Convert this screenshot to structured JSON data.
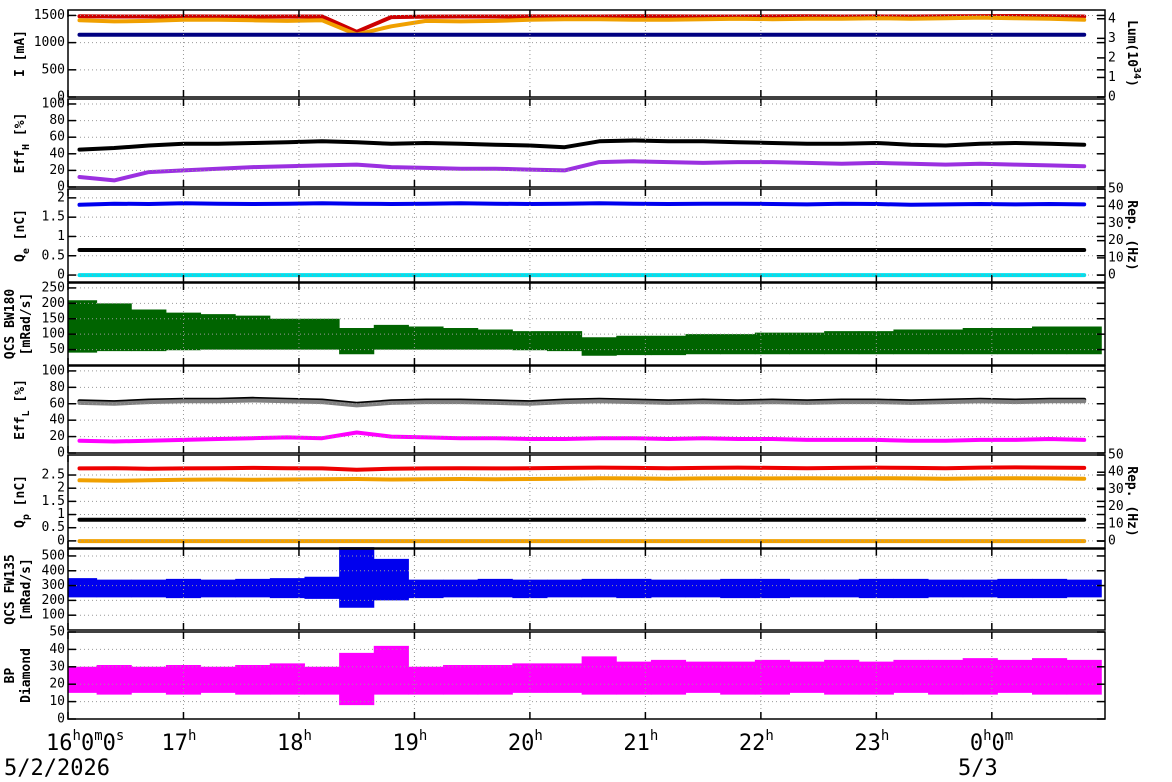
{
  "date_labels": [
    "5/2/2026",
    "5/3"
  ],
  "time_axis": {
    "xlim": [
      16,
      24.98
    ],
    "xticks": [
      {
        "value": 16,
        "label": "16h0m0s"
      },
      {
        "value": 17,
        "label": "17h"
      },
      {
        "value": 18,
        "label": "18h"
      },
      {
        "value": 19,
        "label": "19h"
      },
      {
        "value": 20,
        "label": "20h"
      },
      {
        "value": 21,
        "label": "21h"
      },
      {
        "value": 22,
        "label": "22h"
      },
      {
        "value": 23,
        "label": "23h"
      },
      {
        "value": 24,
        "label": "0h0m"
      }
    ],
    "x": [
      16.1,
      16.4,
      16.7,
      17.0,
      17.3,
      17.6,
      17.9,
      18.2,
      18.5,
      18.8,
      19.1,
      19.4,
      19.7,
      20.0,
      20.3,
      20.6,
      20.9,
      21.2,
      21.5,
      21.8,
      22.1,
      22.4,
      22.7,
      23.0,
      23.3,
      23.6,
      23.9,
      24.2,
      24.5,
      24.8
    ]
  },
  "chart_data": [
    {
      "type": "line",
      "ylabel": [
        [
          {
            "text": "I [mA]"
          }
        ]
      ],
      "y2label": [
        [
          {
            "text": "Lum(10"
          },
          {
            "text": "34",
            "shift": "super"
          },
          {
            "text": ")"
          }
        ]
      ],
      "ylim": [
        0,
        1600
      ],
      "yticks": [
        0,
        500,
        1000,
        1500
      ],
      "y2lim": [
        0,
        4.45
      ],
      "y2ticks": [
        0,
        1,
        2,
        3,
        4
      ],
      "grid": true,
      "series": [
        {
          "color": "#cc0000",
          "values": [
            1485,
            1480,
            1480,
            1482,
            1480,
            1478,
            1480,
            1480,
            1200,
            1470,
            1478,
            1480,
            1480,
            1482,
            1480,
            1480,
            1485,
            1482,
            1480,
            1480,
            1482,
            1485,
            1480,
            1482,
            1480,
            1485,
            1488,
            1490,
            1485,
            1480
          ]
        },
        {
          "color": "#f0a000",
          "values": [
            1410,
            1390,
            1400,
            1420,
            1420,
            1410,
            1400,
            1410,
            1150,
            1300,
            1400,
            1390,
            1400,
            1420,
            1430,
            1430,
            1420,
            1420,
            1430,
            1440,
            1430,
            1440,
            1440,
            1450,
            1440,
            1450,
            1460,
            1450,
            1440,
            1420
          ]
        },
        {
          "color": "#000080",
          "axis": "y2",
          "values": [
            3.18,
            3.18,
            3.18,
            3.18,
            3.18,
            3.18,
            3.18,
            3.18,
            3.18,
            3.18,
            3.18,
            3.18,
            3.18,
            3.18,
            3.18,
            3.18,
            3.18,
            3.18,
            3.18,
            3.18,
            3.18,
            3.18,
            3.18,
            3.18,
            3.18,
            3.18,
            3.18,
            3.18,
            3.18,
            3.18
          ]
        }
      ]
    },
    {
      "type": "line",
      "ylabel": [
        [
          {
            "text": "Eff"
          },
          {
            "text": "H",
            "shift": "sub"
          },
          {
            "text": " [%]"
          }
        ]
      ],
      "ylim": [
        0,
        106
      ],
      "yticks": [
        0,
        20,
        40,
        60,
        80,
        100
      ],
      "grid": true,
      "series": [
        {
          "color": "#000000",
          "values": [
            45,
            47,
            50,
            52,
            52,
            53,
            54,
            55,
            54,
            52,
            53,
            52,
            51,
            50,
            48,
            55,
            56,
            55,
            55,
            54,
            53,
            52,
            52,
            53,
            51,
            50,
            52,
            53,
            52,
            51
          ]
        },
        {
          "color": "#9b30e0",
          "values": [
            12,
            8,
            18,
            20,
            22,
            24,
            25,
            26,
            27,
            24,
            23,
            22,
            22,
            21,
            20,
            30,
            31,
            30,
            29,
            30,
            30,
            29,
            28,
            29,
            28,
            27,
            28,
            27,
            26,
            25
          ]
        }
      ]
    },
    {
      "type": "line",
      "ylabel": [
        [
          {
            "text": "Q"
          },
          {
            "text": "e",
            "shift": "sub"
          },
          {
            "text": " [nC]"
          }
        ]
      ],
      "y2label": [
        [
          {
            "text": "Rep. (Hz)"
          }
        ]
      ],
      "ylim": [
        -0.18,
        2.23
      ],
      "yticks": [
        0,
        0.5,
        1,
        1.5,
        2
      ],
      "y2lim": [
        -4,
        50
      ],
      "y2ticks": [
        0,
        10,
        20,
        30,
        40,
        50
      ],
      "grid": true,
      "series": [
        {
          "color": "#0000ee",
          "values": [
            1.82,
            1.85,
            1.84,
            1.86,
            1.85,
            1.84,
            1.85,
            1.86,
            1.85,
            1.84,
            1.85,
            1.86,
            1.85,
            1.84,
            1.85,
            1.86,
            1.85,
            1.84,
            1.85,
            1.85,
            1.84,
            1.83,
            1.85,
            1.84,
            1.82,
            1.83,
            1.84,
            1.83,
            1.84,
            1.83
          ]
        },
        {
          "color": "#000000",
          "values": [
            0.65,
            0.65,
            0.65,
            0.65,
            0.65,
            0.65,
            0.65,
            0.65,
            0.65,
            0.65,
            0.65,
            0.65,
            0.65,
            0.65,
            0.65,
            0.65,
            0.65,
            0.65,
            0.65,
            0.65,
            0.65,
            0.65,
            0.65,
            0.65,
            0.65,
            0.65,
            0.65,
            0.65,
            0.65,
            0.65
          ]
        },
        {
          "color": "#00e0ee",
          "axis": "y2",
          "values": [
            0,
            0,
            0,
            0,
            0,
            0,
            0,
            0,
            0,
            0,
            0,
            0,
            0,
            0,
            0,
            0,
            0,
            0,
            0,
            0,
            0,
            0,
            0,
            0,
            0,
            0,
            0,
            0,
            0,
            0
          ]
        }
      ]
    },
    {
      "type": "range",
      "ylabel": [
        [
          {
            "text": "QCS BW180"
          }
        ],
        [
          {
            "text": "[mRad/s]"
          }
        ]
      ],
      "ylim": [
        0,
        266
      ],
      "yticks": [
        50,
        100,
        150,
        200,
        250
      ],
      "grid": true,
      "series": [
        {
          "color": "#006400",
          "values": [
            210,
            200,
            180,
            170,
            165,
            160,
            150,
            150,
            120,
            130,
            125,
            120,
            115,
            110,
            110,
            90,
            95,
            95,
            100,
            100,
            105,
            105,
            110,
            110,
            115,
            115,
            120,
            120,
            125,
            125
          ],
          "lower": [
            40,
            45,
            45,
            48,
            50,
            50,
            50,
            50,
            35,
            50,
            50,
            50,
            50,
            48,
            45,
            30,
            32,
            32,
            35,
            35,
            35,
            35,
            35,
            35,
            35,
            35,
            35,
            35,
            35,
            35
          ]
        }
      ]
    },
    {
      "type": "line",
      "ylabel": [
        [
          {
            "text": "Eff"
          },
          {
            "text": "L",
            "shift": "sub"
          },
          {
            "text": " [%]"
          }
        ]
      ],
      "ylim": [
        0,
        106
      ],
      "yticks": [
        0,
        20,
        40,
        60,
        80,
        100
      ],
      "grid": true,
      "series": [
        {
          "color": "#000000",
          "values": [
            63,
            62,
            64,
            65,
            65,
            66,
            65,
            64,
            60,
            63,
            64,
            64,
            63,
            62,
            64,
            65,
            64,
            63,
            64,
            63,
            64,
            63,
            64,
            64,
            63,
            64,
            65,
            64,
            65,
            65
          ]
        },
        {
          "color": "#808080",
          "values": [
            61,
            60,
            62,
            63,
            63,
            64,
            63,
            62,
            58,
            61,
            62,
            62,
            61,
            60,
            62,
            63,
            62,
            61,
            62,
            61,
            62,
            61,
            62,
            62,
            61,
            62,
            63,
            62,
            63,
            63
          ]
        },
        {
          "color": "#ff00ff",
          "values": [
            15,
            14,
            15,
            16,
            17,
            18,
            19,
            18,
            25,
            20,
            19,
            18,
            18,
            17,
            17,
            18,
            18,
            17,
            18,
            17,
            17,
            16,
            16,
            16,
            15,
            15,
            16,
            16,
            17,
            16
          ]
        }
      ]
    },
    {
      "type": "line",
      "ylabel": [
        [
          {
            "text": "Q"
          },
          {
            "text": "p",
            "shift": "sub"
          },
          {
            "text": " [nC]"
          }
        ]
      ],
      "y2label": [
        [
          {
            "text": "Rep. (Hz)"
          }
        ]
      ],
      "ylim": [
        -0.27,
        3.26
      ],
      "yticks": [
        0,
        0.5,
        1,
        1.5,
        2,
        2.5
      ],
      "y2lim": [
        -4,
        50
      ],
      "y2ticks": [
        0,
        10,
        20,
        30,
        40,
        50
      ],
      "grid": true,
      "series": [
        {
          "color": "#ee0000",
          "values": [
            2.75,
            2.76,
            2.74,
            2.75,
            2.76,
            2.77,
            2.76,
            2.75,
            2.7,
            2.74,
            2.75,
            2.76,
            2.75,
            2.76,
            2.77,
            2.78,
            2.77,
            2.76,
            2.77,
            2.78,
            2.77,
            2.76,
            2.77,
            2.78,
            2.77,
            2.76,
            2.78,
            2.79,
            2.78,
            2.77
          ]
        },
        {
          "color": "#f0a000",
          "values": [
            2.3,
            2.28,
            2.3,
            2.32,
            2.33,
            2.32,
            2.33,
            2.34,
            2.35,
            2.33,
            2.34,
            2.35,
            2.34,
            2.35,
            2.36,
            2.38,
            2.37,
            2.36,
            2.37,
            2.38,
            2.37,
            2.38,
            2.37,
            2.38,
            2.37,
            2.36,
            2.37,
            2.38,
            2.37,
            2.36
          ]
        },
        {
          "color": "#000000",
          "values": [
            0.8,
            0.8,
            0.8,
            0.8,
            0.8,
            0.8,
            0.8,
            0.8,
            0.8,
            0.8,
            0.8,
            0.8,
            0.8,
            0.8,
            0.8,
            0.8,
            0.8,
            0.8,
            0.8,
            0.8,
            0.8,
            0.8,
            0.8,
            0.8,
            0.8,
            0.8,
            0.8,
            0.8,
            0.8,
            0.8
          ]
        },
        {
          "color": "#f0a000",
          "axis": "y2",
          "values": [
            0,
            0,
            0,
            0,
            0,
            0,
            0,
            0,
            0,
            0,
            0,
            0,
            0,
            0,
            0,
            0,
            0,
            0,
            0,
            0,
            0,
            0,
            0,
            0,
            0,
            0,
            0,
            0,
            0,
            0
          ]
        }
      ]
    },
    {
      "type": "range",
      "ylabel": [
        [
          {
            "text": "QCS FW135"
          }
        ],
        [
          {
            "text": "[mRad/s]"
          }
        ]
      ],
      "ylim": [
        0,
        547
      ],
      "yticks": [
        100,
        200,
        300,
        400,
        500
      ],
      "grid": true,
      "series": [
        {
          "color": "#0000ee",
          "values": [
            350,
            340,
            340,
            345,
            340,
            345,
            350,
            360,
            560,
            480,
            340,
            340,
            345,
            340,
            340,
            345,
            345,
            340,
            340,
            345,
            345,
            340,
            340,
            345,
            345,
            340,
            340,
            345,
            345,
            340
          ],
          "lower": [
            220,
            220,
            220,
            215,
            220,
            220,
            215,
            210,
            150,
            200,
            215,
            220,
            220,
            215,
            220,
            220,
            215,
            220,
            220,
            215,
            215,
            220,
            220,
            215,
            215,
            220,
            220,
            215,
            215,
            220
          ]
        }
      ]
    },
    {
      "type": "range",
      "ylabel": [
        [
          {
            "text": "BP"
          }
        ],
        [
          {
            "text": "Diamond"
          }
        ]
      ],
      "ylim": [
        0,
        50
      ],
      "yticks": [
        0,
        10,
        20,
        30,
        40,
        50
      ],
      "grid": true,
      "series": [
        {
          "color": "#ff00ff",
          "values": [
            30,
            31,
            30,
            31,
            30,
            31,
            32,
            30,
            38,
            42,
            30,
            31,
            31,
            32,
            32,
            36,
            33,
            34,
            33,
            33,
            34,
            33,
            34,
            33,
            34,
            34,
            35,
            34,
            35,
            34
          ],
          "lower": [
            15,
            14,
            15,
            14,
            15,
            14,
            14,
            14,
            8,
            14,
            14,
            14,
            14,
            15,
            15,
            14,
            14,
            14,
            15,
            14,
            14,
            15,
            14,
            14,
            15,
            14,
            14,
            15,
            14,
            14
          ]
        }
      ]
    }
  ]
}
